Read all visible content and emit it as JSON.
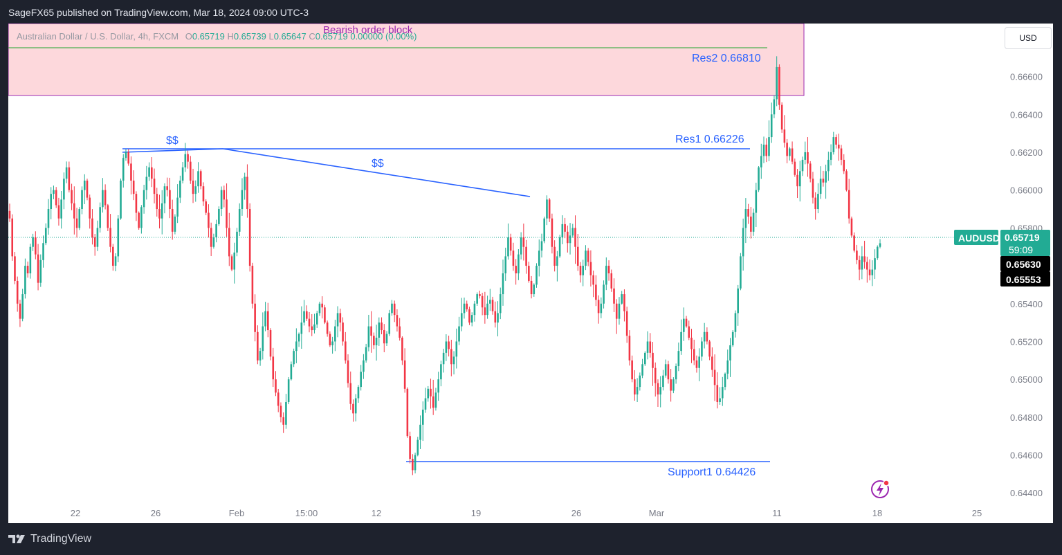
{
  "header": {
    "published": "SageFX65 published on TradingView.com, Mar 18, 2024 09:00 UTC-3"
  },
  "legend": {
    "symbol": "Australian Dollar / U.S. Dollar, 4h, FXCM",
    "o_label": "O",
    "o": "0.65719",
    "h_label": "H",
    "h": "0.65739",
    "l_label": "L",
    "l": "0.65647",
    "c_label": "C",
    "c": "0.65719",
    "change": "0.00000 (0.00%)"
  },
  "currency_button": "USD",
  "footer": {
    "brand": "TradingView"
  },
  "colors": {
    "up": "#22ab94",
    "down": "#f23645",
    "line": "#2962ff",
    "zone": "#fdd8dc",
    "zone_border": "#9c27b0"
  },
  "chart_data": {
    "type": "candlestick",
    "symbol": "AUDUSD",
    "timeframe": "4h",
    "price_axis": {
      "ticks": [
        "0.66600",
        "0.66400",
        "0.66200",
        "0.66000",
        "0.65800",
        "0.65400",
        "0.65200",
        "0.65000",
        "0.64800",
        "0.64600",
        "0.64400"
      ],
      "range": [
        0.6424,
        0.6688
      ]
    },
    "time_axis": {
      "ticks": [
        "22",
        "26",
        "Feb",
        "15:00",
        "12",
        "19",
        "26",
        "Mar",
        "11",
        "18",
        "25"
      ]
    },
    "price_labels": {
      "current_symbol": "AUDUSD",
      "current_price": "0.65719",
      "countdown": "59:09",
      "label2": "0.65630",
      "label3": "0.65553"
    },
    "annotations": {
      "zone_label": "Bearish order block",
      "res2": "Res2 0.66810",
      "res1": "Res1 0.66226",
      "support1": "Support1  0.64426",
      "liq1": "$$",
      "liq2": "$$"
    },
    "levels": {
      "res2": 0.6681,
      "res1": 0.66226,
      "support1": 0.64426,
      "current": 0.65719,
      "zone_top": 0.6686,
      "zone_bottom": 0.6654
    },
    "closes": [
      0.6585,
      0.6565,
      0.6552,
      0.654,
      0.6532,
      0.6545,
      0.656,
      0.6556,
      0.657,
      0.6575,
      0.6566,
      0.6551,
      0.6563,
      0.6572,
      0.658,
      0.659,
      0.6598,
      0.66,
      0.6592,
      0.6585,
      0.6595,
      0.6606,
      0.6612,
      0.66,
      0.6593,
      0.6585,
      0.658,
      0.659,
      0.66,
      0.6605,
      0.6596,
      0.6585,
      0.6575,
      0.657,
      0.658,
      0.6591,
      0.66,
      0.6592,
      0.658,
      0.657,
      0.656,
      0.6565,
      0.6585,
      0.6605,
      0.6617,
      0.662,
      0.6614,
      0.6605,
      0.6598,
      0.6588,
      0.658,
      0.6591,
      0.66,
      0.6607,
      0.6612,
      0.6606,
      0.6598,
      0.659,
      0.6585,
      0.6593,
      0.6602,
      0.66,
      0.659,
      0.6578,
      0.6586,
      0.6596,
      0.6605,
      0.6612,
      0.6619,
      0.6615,
      0.6605,
      0.6598,
      0.6602,
      0.661,
      0.6602,
      0.6594,
      0.6588,
      0.658,
      0.657,
      0.6575,
      0.6582,
      0.659,
      0.66,
      0.6595,
      0.658,
      0.6565,
      0.6558,
      0.6567,
      0.6578,
      0.659,
      0.66,
      0.6607,
      0.659,
      0.656,
      0.654,
      0.6525,
      0.651,
      0.6515,
      0.6528,
      0.6536,
      0.6526,
      0.6512,
      0.65,
      0.6493,
      0.6486,
      0.648,
      0.6476,
      0.6488,
      0.65,
      0.6508,
      0.6515,
      0.652,
      0.6524,
      0.653,
      0.6536,
      0.6532,
      0.6528,
      0.6526,
      0.6529,
      0.6535,
      0.654,
      0.6538,
      0.653,
      0.6524,
      0.6518,
      0.652,
      0.6528,
      0.6535,
      0.653,
      0.652,
      0.651,
      0.6498,
      0.6487,
      0.6482,
      0.649,
      0.6496,
      0.6504,
      0.651,
      0.6517,
      0.6528,
      0.6523,
      0.6518,
      0.6522,
      0.653,
      0.6526,
      0.6519,
      0.6524,
      0.6535,
      0.654,
      0.6534,
      0.6528,
      0.6522,
      0.651,
      0.6495,
      0.647,
      0.6458,
      0.6452,
      0.646,
      0.6468,
      0.6476,
      0.6484,
      0.649,
      0.6495,
      0.6491,
      0.6485,
      0.6493,
      0.65,
      0.6508,
      0.6514,
      0.652,
      0.6516,
      0.6508,
      0.6512,
      0.652,
      0.6528,
      0.6535,
      0.654,
      0.6537,
      0.653,
      0.6534,
      0.654,
      0.6545,
      0.6544,
      0.6538,
      0.6534,
      0.654,
      0.6542,
      0.6536,
      0.653,
      0.6535,
      0.6545,
      0.6556,
      0.6565,
      0.6575,
      0.6568,
      0.656,
      0.6556,
      0.6566,
      0.6575,
      0.657,
      0.656,
      0.6552,
      0.6545,
      0.655,
      0.656,
      0.6568,
      0.6573,
      0.6585,
      0.6595,
      0.6585,
      0.657,
      0.656,
      0.6565,
      0.6575,
      0.6582,
      0.6578,
      0.6572,
      0.6576,
      0.658,
      0.657,
      0.656,
      0.6555,
      0.656,
      0.6568,
      0.6562,
      0.6555,
      0.655,
      0.6542,
      0.6535,
      0.654,
      0.655,
      0.656,
      0.6556,
      0.6548,
      0.654,
      0.6532,
      0.654,
      0.6545,
      0.6536,
      0.6523,
      0.651,
      0.65,
      0.6492,
      0.6496,
      0.6502,
      0.6508,
      0.6514,
      0.652,
      0.6514,
      0.6506,
      0.6498,
      0.6492,
      0.6496,
      0.6502,
      0.6508,
      0.65,
      0.6494,
      0.65,
      0.6507,
      0.6515,
      0.6525,
      0.6532,
      0.6528,
      0.6522,
      0.6516,
      0.651,
      0.6506,
      0.6512,
      0.652,
      0.6525,
      0.652,
      0.6512,
      0.6505,
      0.6497,
      0.6488,
      0.649,
      0.6496,
      0.6503,
      0.651,
      0.6518,
      0.6525,
      0.6535,
      0.6548,
      0.6565,
      0.658,
      0.659,
      0.6586,
      0.6578,
      0.6588,
      0.66,
      0.6612,
      0.6618,
      0.6624,
      0.6618,
      0.6628,
      0.664,
      0.6648,
      0.6665,
      0.6645,
      0.6632,
      0.6625,
      0.6618,
      0.6622,
      0.6615,
      0.6608,
      0.6602,
      0.661,
      0.6616,
      0.662,
      0.6614,
      0.6606,
      0.6596,
      0.659,
      0.6598,
      0.6606,
      0.6604,
      0.661,
      0.6616,
      0.662,
      0.6628,
      0.6624,
      0.6622,
      0.6616,
      0.661,
      0.66,
      0.6585,
      0.6576,
      0.6568,
      0.6563,
      0.6558,
      0.6565,
      0.6562,
      0.6558,
      0.6555,
      0.6558,
      0.6564,
      0.657,
      0.65719
    ],
    "x_range": [
      0,
      1270
    ]
  }
}
